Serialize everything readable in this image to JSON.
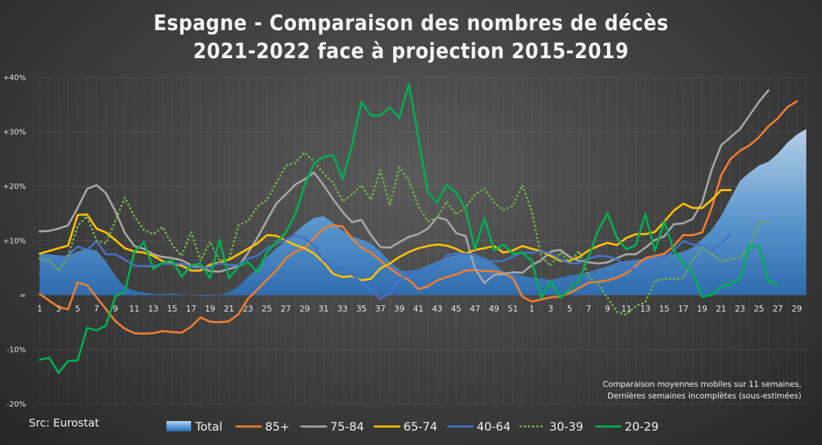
{
  "title_line1": "Espagne - Comparaison des nombres de décès",
  "title_line2": "2021-2022 face à projection 2015-2019",
  "note_line1": "Comparaison moyennes mobiles sur 11 semaines,",
  "note_line2": "Dernières semaines incomplètes (sous-estimées)",
  "source": "Src: Eurostat",
  "chart_data": {
    "type": "line",
    "ylim": [
      -20,
      40
    ],
    "y_ticks": [
      -20,
      -10,
      0,
      10,
      20,
      30,
      40
    ],
    "y_tick_labels": [
      "-20%",
      "-10%",
      "=",
      "+10%",
      "+20%",
      "+30%",
      "+40%"
    ],
    "week_count": 82,
    "x_tick_labels": [
      "1",
      "3",
      "5",
      "7",
      "9",
      "11",
      "13",
      "15",
      "17",
      "19",
      "21",
      "23",
      "25",
      "27",
      "29",
      "31",
      "33",
      "35",
      "37",
      "39",
      "41",
      "43",
      "45",
      "47",
      "49",
      "51",
      "1",
      "3",
      "5",
      "7",
      "9",
      "11",
      "13",
      "15",
      "17",
      "19",
      "21",
      "23",
      "25",
      "27",
      "29"
    ],
    "legend_position": "bottom",
    "series": [
      {
        "name": "Total",
        "style": "area",
        "color": "#5b9bd5",
        "values": [
          7.6,
          7.5,
          7.3,
          7.2,
          8,
          8.5,
          8.2,
          6.2,
          3.5,
          1.5,
          0.8,
          0.5,
          0.2,
          0.2,
          0.3,
          0.1,
          0,
          -0.2,
          -0.2,
          0,
          0.6,
          1.6,
          3.3,
          5,
          7,
          8.6,
          10,
          11.5,
          13,
          14.2,
          14.5,
          13.3,
          11.8,
          10.8,
          10.2,
          9.5,
          8,
          6.2,
          4.6,
          4.3,
          4.7,
          5.5,
          6.2,
          6.9,
          7.4,
          7.5,
          7.2,
          6.9,
          5.8,
          4.3,
          4,
          3.6,
          3.2,
          3,
          2.8,
          3.2,
          3.6,
          3.9,
          4.2,
          4.8,
          5.3,
          5.9,
          6.3,
          6.5,
          6.7,
          7,
          7.4,
          7.6,
          8,
          8.7,
          10.3,
          12,
          14.5,
          17.8,
          21,
          22.5,
          23.8,
          24.5,
          26,
          28,
          29.5,
          30.5
        ]
      },
      {
        "name": "85+",
        "style": "line",
        "color": "#ed7d31",
        "values": [
          0.2,
          -1,
          -2.2,
          -2.6,
          2.3,
          1.8,
          -0.4,
          -2.6,
          -4.8,
          -6.2,
          -7,
          -7.1,
          -7,
          -6.6,
          -6.8,
          -6.9,
          -5.8,
          -4.1,
          -4.9,
          -5,
          -4.8,
          -3.5,
          -0.7,
          1,
          2.8,
          4.5,
          6.7,
          8,
          8.6,
          10.5,
          12.2,
          12.8,
          12.6,
          10.4,
          8.7,
          7.8,
          6.3,
          4.9,
          3.7,
          2.8,
          1.1,
          1.6,
          2.7,
          3.3,
          3.8,
          4.5,
          4.6,
          4.4,
          4.4,
          4,
          3.1,
          -0.3,
          -1.2,
          -0.8,
          -0.4,
          -0.3,
          0.4,
          1.3,
          2.3,
          2.4,
          2.7,
          3.2,
          4,
          5.4,
          6.8,
          7.2,
          7.6,
          9,
          11,
          11,
          11.5,
          16,
          22,
          25,
          26.5,
          27.5,
          29,
          31,
          32.5,
          34.5,
          35.6
        ]
      },
      {
        "name": "75-84",
        "style": "line",
        "color": "#a5a5a5",
        "values": [
          11.7,
          11.8,
          12.2,
          12.8,
          16,
          19.5,
          20.2,
          18.7,
          15.4,
          11.4,
          9,
          8.5,
          7.5,
          7,
          6.8,
          6.4,
          5.5,
          5.1,
          4.4,
          4.3,
          4.8,
          5.3,
          7.7,
          10.5,
          13.7,
          16.8,
          18.5,
          20.3,
          21.3,
          22.5,
          20.2,
          17.6,
          15.3,
          13.4,
          13.8,
          11,
          8.8,
          8.7,
          9.7,
          10.7,
          11.2,
          12.2,
          14.3,
          13.8,
          11.4,
          10.8,
          4.8,
          2.2,
          3.7,
          3.9,
          4.2,
          4.1,
          5.5,
          6.4,
          8,
          8.3,
          7,
          6.3,
          6,
          5.8,
          6,
          6.8,
          7.5,
          7.5,
          8.7,
          10.1,
          10.8,
          13,
          13.2,
          14,
          17,
          23,
          27.5,
          29,
          30.5,
          33,
          35.5,
          37.6
        ]
      },
      {
        "name": "65-74",
        "style": "line",
        "color": "#ffc000",
        "values": [
          7.6,
          8.1,
          8.6,
          9.1,
          14.7,
          14.8,
          12.2,
          11.5,
          10.1,
          8.6,
          8,
          7.8,
          7.2,
          6.2,
          5.8,
          5.4,
          4.5,
          4.5,
          5.6,
          6,
          6.5,
          7.5,
          8.5,
          9.5,
          11,
          10.9,
          10,
          9.2,
          8.6,
          7.6,
          6,
          3.9,
          3.3,
          3.5,
          2.7,
          3,
          4.9,
          5.8,
          7,
          7.9,
          8.6,
          9,
          9.3,
          9.1,
          8.5,
          7.6,
          8.3,
          8.6,
          9,
          7.8,
          8.2,
          9,
          8.5,
          8.1,
          7.2,
          6.3,
          6.3,
          7,
          8.2,
          9,
          9.6,
          9.2,
          10.5,
          11.2,
          11.2,
          11.6,
          13.5,
          15.5,
          16.8,
          16,
          16,
          17.5,
          19.3,
          19.3
        ]
      },
      {
        "name": "40-64",
        "style": "line",
        "color": "#4472c4",
        "values": [
          4,
          5.8,
          6.5,
          7.3,
          8.9,
          8.3,
          9.9,
          7.5,
          7.5,
          6.5,
          5.4,
          5.3,
          5.3,
          5.8,
          5.7,
          5.8,
          5.1,
          5,
          5.1,
          5.9,
          5.5,
          5.5,
          6.7,
          7.2,
          8.6,
          9.4,
          10.2,
          11,
          10.4,
          9.1,
          6.3,
          5.4,
          5,
          3.8,
          2.3,
          1,
          -0.7,
          0.3,
          2.8,
          4.3,
          4.5,
          4.4,
          4.7,
          7.3,
          7.7,
          7.5,
          7.5,
          6.3,
          6.2,
          6.3,
          7.1,
          7.8,
          7.8,
          8.1,
          7.6,
          6.6,
          5.8,
          5.9,
          6.7,
          7.2,
          7.1,
          6.6,
          5.2,
          4.7,
          4.8,
          6.5,
          7,
          8.2,
          9.9,
          9.3,
          9.1,
          8.2,
          9.5,
          11.2
        ]
      },
      {
        "name": "30-39",
        "style": "dotted",
        "color": "#70ad47",
        "values": [
          6.7,
          6.4,
          4.5,
          7.1,
          12.7,
          14.5,
          10,
          9.5,
          13.7,
          17.9,
          14.5,
          12,
          11.2,
          12.5,
          9.2,
          7.2,
          11.6,
          6.3,
          9.8,
          6.4,
          6.5,
          12.8,
          13.6,
          16.2,
          17.5,
          20.6,
          23.8,
          24.3,
          26.2,
          24.5,
          22.3,
          20.6,
          17.2,
          18.5,
          20.2,
          17.5,
          22.9,
          16.5,
          23.5,
          21,
          16.4,
          13.6,
          14.2,
          17.2,
          14.8,
          16.1,
          18.5,
          19.6,
          17,
          15.6,
          16.4,
          20.2,
          15.4,
          7,
          5.4,
          7.8,
          6,
          8.1,
          3.3,
          2,
          -0.5,
          -3.1,
          -3.6,
          -2,
          -1.3,
          2.6,
          3,
          2.9,
          3.2,
          6.4,
          8.8,
          7.5,
          6.2,
          6.5,
          7,
          8.8,
          13.5,
          13.5
        ]
      },
      {
        "name": "20-29",
        "style": "line",
        "color": "#00b050",
        "values": [
          -11.9,
          -11.5,
          -14.3,
          -12.1,
          -12,
          -6,
          -6.5,
          -5.6,
          -0.2,
          0.6,
          8,
          9.7,
          4.8,
          5.9,
          6.4,
          3.4,
          5.5,
          5.8,
          3.1,
          10.2,
          3.1,
          5.2,
          6.1,
          4.2,
          7.9,
          9.7,
          11.5,
          14.8,
          20.2,
          24.2,
          25.4,
          25.7,
          21.3,
          27.5,
          35.5,
          33,
          33,
          34.5,
          32.5,
          38.8,
          29,
          19,
          17,
          20.2,
          18.8,
          15.8,
          8.4,
          14.2,
          8.2,
          9.3,
          7.6,
          7.8,
          6.3,
          -0.5,
          2.5,
          -0.5,
          1,
          2.8,
          7,
          11.8,
          15.1,
          10.5,
          8.4,
          9.2,
          14.9,
          8.1,
          13.5,
          8.2,
          5.8,
          4.2,
          -0.3,
          0,
          1.6,
          2,
          3,
          9,
          8.9,
          2.5,
          2
        ]
      }
    ]
  }
}
